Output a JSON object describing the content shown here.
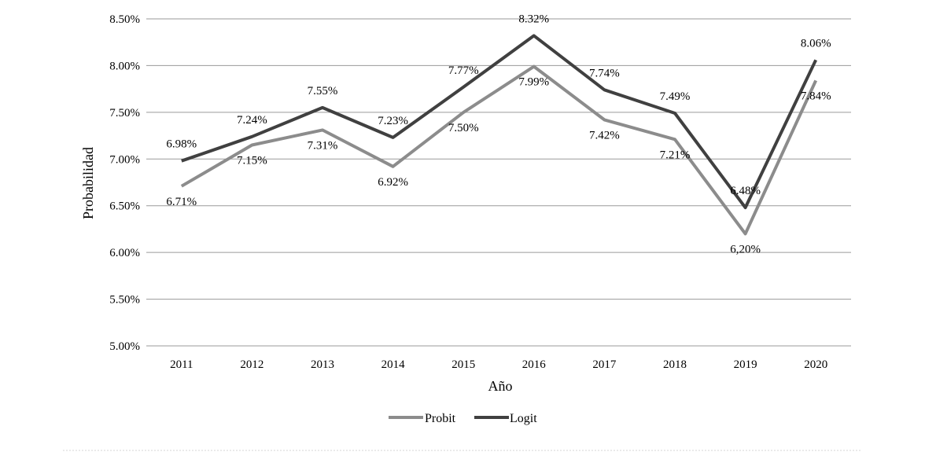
{
  "chart_data": {
    "type": "line",
    "xlabel": "Año",
    "ylabel": "Probabilidad",
    "categories": [
      "2011",
      "2012",
      "2013",
      "2014",
      "2015",
      "2016",
      "2017",
      "2018",
      "2019",
      "2020"
    ],
    "ylim": [
      5.0,
      8.5
    ],
    "yticks": [
      "5.00%",
      "5.50%",
      "6.00%",
      "6.50%",
      "7.00%",
      "7.50%",
      "8.00%",
      "8.50%"
    ],
    "grid": true,
    "legend_position": "bottom",
    "series": [
      {
        "name": "Probit",
        "color": "#8c8c8c",
        "values": [
          6.71,
          7.15,
          7.31,
          6.92,
          7.5,
          7.99,
          7.42,
          7.21,
          6.2,
          7.84
        ],
        "labels": [
          "6.71%",
          "7.15%",
          "7.31%",
          "6.92%",
          "7.50%",
          "7.99%",
          "7.42%",
          "7.21%",
          "6,20%",
          "7.84%"
        ]
      },
      {
        "name": "Logit",
        "color": "#404040",
        "values": [
          6.98,
          7.24,
          7.55,
          7.23,
          7.77,
          8.32,
          7.74,
          7.49,
          6.48,
          8.06
        ],
        "labels": [
          "6.98%",
          "7.24%",
          "7.55%",
          "7.23%",
          "7.77%",
          "8.32%",
          "7.74%",
          "7.49%",
          "6.48%",
          "8.06%"
        ]
      }
    ]
  }
}
